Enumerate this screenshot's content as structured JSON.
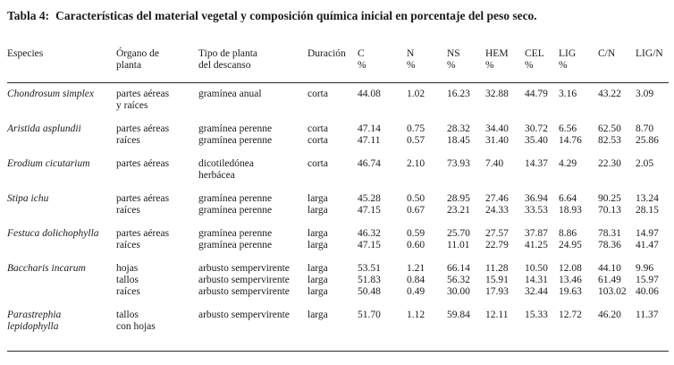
{
  "title": {
    "label": "Tabla 4:",
    "text": "Características del material vegetal y composición química inicial en porcentaje del peso seco."
  },
  "colors": {
    "background": "#ffffff",
    "text": "#1b1b1b",
    "rule": "#2a2a2a"
  },
  "table": {
    "columns": [
      {
        "name": "especies",
        "lines": [
          "Especies"
        ]
      },
      {
        "name": "organo",
        "lines": [
          "Órgano de",
          "planta"
        ]
      },
      {
        "name": "tipo",
        "lines": [
          "Tipo de planta",
          "del descanso"
        ]
      },
      {
        "name": "duracion",
        "lines": [
          "Duración"
        ]
      },
      {
        "name": "c",
        "lines": [
          "C",
          "%"
        ]
      },
      {
        "name": "n",
        "lines": [
          "N",
          "%"
        ]
      },
      {
        "name": "ns",
        "lines": [
          "NS",
          "%"
        ]
      },
      {
        "name": "hem",
        "lines": [
          "HEM",
          "%"
        ]
      },
      {
        "name": "cel",
        "lines": [
          "CEL",
          "%"
        ]
      },
      {
        "name": "lig",
        "lines": [
          "LIG",
          "%"
        ]
      },
      {
        "name": "cn",
        "lines": [
          "C/N"
        ]
      },
      {
        "name": "lign",
        "lines": [
          "LIG/N"
        ]
      }
    ],
    "groups": [
      {
        "species": [
          "Chondrosum simplex"
        ],
        "organo": [
          "partes aéreas",
          "y raíces"
        ],
        "tipo": [
          "gramínea anual"
        ],
        "duracion": [
          "corta"
        ],
        "rows": [
          [
            "44.08",
            "1.02",
            "16.23",
            "32.88",
            "44.79",
            "3.16",
            "43.22",
            "3.09"
          ]
        ]
      },
      {
        "species": [
          "Aristida asplundii"
        ],
        "organo": [
          "partes aéreas",
          "raíces"
        ],
        "tipo": [
          "gramínea perenne",
          "gramínea perenne"
        ],
        "duracion": [
          "corta",
          "corta"
        ],
        "rows": [
          [
            "47.14",
            "0.75",
            "28.32",
            "34.40",
            "30.72",
            "6.56",
            "62.50",
            "8.70"
          ],
          [
            "47.11",
            "0.57",
            "18.45",
            "31.40",
            "35.40",
            "14.76",
            "82.53",
            "25.86"
          ]
        ]
      },
      {
        "species": [
          "Erodium cicutarium"
        ],
        "organo": [
          "partes aéreas"
        ],
        "tipo": [
          "dicotiledónea",
          "herbácea"
        ],
        "duracion": [
          "corta"
        ],
        "rows": [
          [
            "46.74",
            "2.10",
            "73.93",
            "7.40",
            "14.37",
            "4.29",
            "22.30",
            "2.05"
          ]
        ]
      },
      {
        "species": [
          "Stipa ichu"
        ],
        "organo": [
          "partes aéreas",
          "raíces"
        ],
        "tipo": [
          "gramínea perenne",
          "gramínea perenne"
        ],
        "duracion": [
          "larga",
          "larga"
        ],
        "rows": [
          [
            "45.28",
            "0.50",
            "28.95",
            "27.46",
            "36.94",
            "6.64",
            "90.25",
            "13.24"
          ],
          [
            "47.15",
            "0.67",
            "23.21",
            "24.33",
            "33.53",
            "18.93",
            "70.13",
            "28.15"
          ]
        ]
      },
      {
        "species": [
          "Festuca dolichophylla"
        ],
        "organo": [
          "partes aéreas",
          "raíces"
        ],
        "tipo": [
          "gramínea perenne",
          "gramínea perenne"
        ],
        "duracion": [
          "larga",
          "larga"
        ],
        "rows": [
          [
            "46.32",
            "0.59",
            "25.70",
            "27.57",
            "37.87",
            "8.86",
            "78.31",
            "14.97"
          ],
          [
            "47.15",
            "0.60",
            "11.01",
            "22.79",
            "41.25",
            "24.95",
            "78.36",
            "41.47"
          ]
        ]
      },
      {
        "species": [
          "Baccharis incarum"
        ],
        "organo": [
          "hojas",
          "tallos",
          "raíces"
        ],
        "tipo": [
          "arbusto sempervirente",
          "arbusto sempervirente",
          "arbusto sempervirente"
        ],
        "duracion": [
          "larga",
          "larga",
          "larga"
        ],
        "rows": [
          [
            "53.51",
            "1.21",
            "66.14",
            "11.28",
            "10.50",
            "12.08",
            "44.10",
            "9.96"
          ],
          [
            "51.83",
            "0.84",
            "56.32",
            "15.91",
            "14.31",
            "13.46",
            "61.49",
            "15.97"
          ],
          [
            "50.48",
            "0.49",
            "30.00",
            "17.93",
            "32.44",
            "19.63",
            "103.02",
            "40.06"
          ]
        ]
      },
      {
        "species": [
          "Parastrephia",
          "lepidophylla"
        ],
        "organo": [
          "tallos",
          "con hojas"
        ],
        "tipo": [
          "arbusto sempervirente"
        ],
        "duracion": [
          "larga"
        ],
        "rows": [
          [
            "51.70",
            "1.12",
            "59.84",
            "12.11",
            "15.33",
            "12.72",
            "46.20",
            "11.37"
          ]
        ]
      }
    ]
  }
}
